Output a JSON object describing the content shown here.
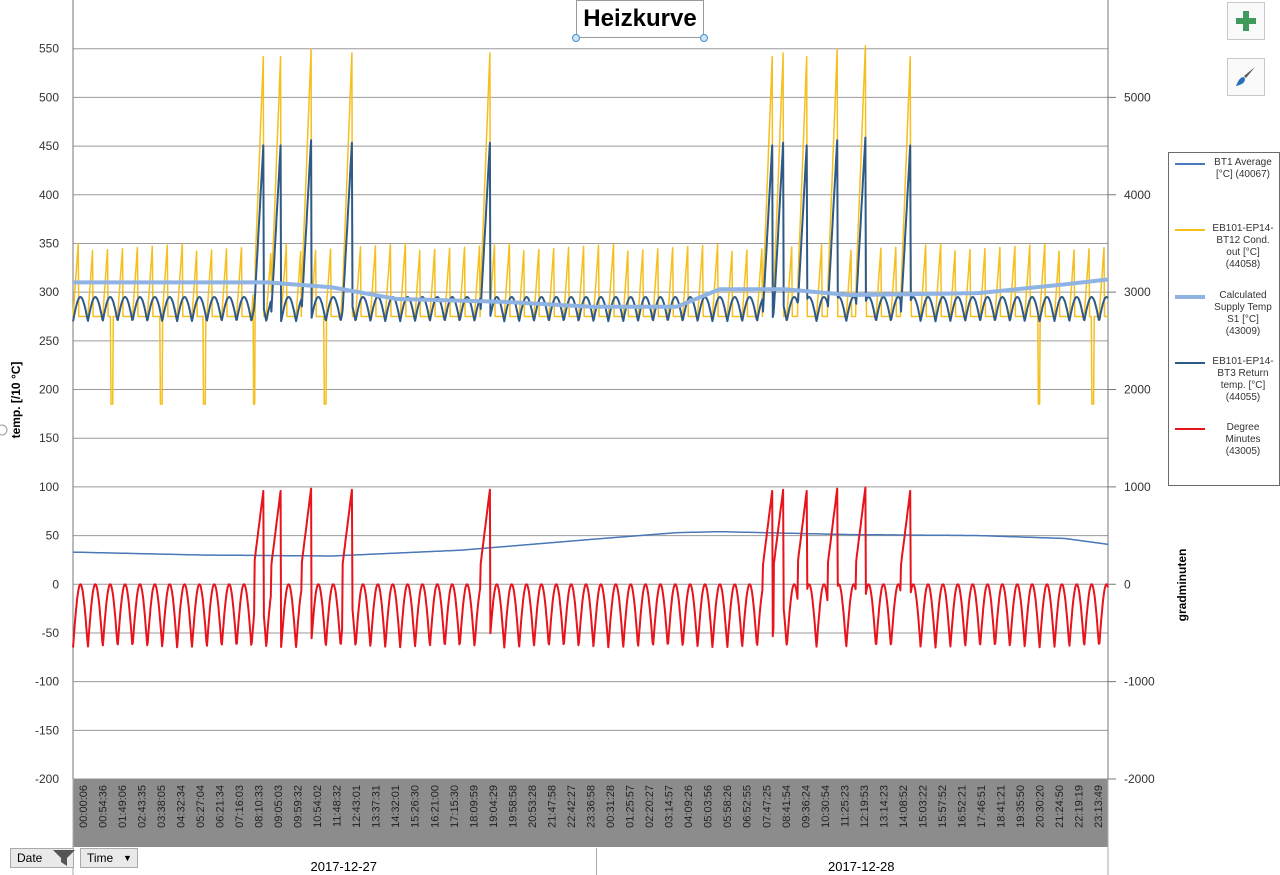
{
  "chart_data": {
    "type": "line",
    "title": "Heizkurve",
    "ylabel": "temp. [/10 °C]",
    "y2label": "gradminuten",
    "ylim": [
      -200,
      600
    ],
    "y2lim": [
      -2000,
      6000
    ],
    "yticks": [
      550,
      500,
      450,
      400,
      350,
      300,
      250,
      200,
      150,
      100,
      50,
      0,
      -50,
      -100,
      -150,
      -200
    ],
    "y2ticks": [
      5000,
      4000,
      3000,
      2000,
      1000,
      0,
      -1000,
      -2000
    ],
    "grid": true,
    "legend_position": "right",
    "x_time_labels": [
      "00:00:06",
      "00:54:36",
      "01:49:06",
      "02:43:35",
      "03:38:05",
      "04:32:34",
      "05:27:04",
      "06:21:34",
      "07:16:03",
      "08:10:33",
      "09:05:03",
      "09:59:32",
      "10:54:02",
      "11:48:32",
      "12:43:01",
      "13:37:31",
      "14:32:01",
      "15:26:30",
      "16:21:00",
      "17:15:30",
      "18:09:59",
      "19:04:29",
      "19:58:58",
      "20:53:28",
      "21:47:58",
      "22:42:27",
      "23:36:58",
      "00:31:28",
      "01:25:57",
      "02:20:27",
      "03:14:57",
      "04:09:26",
      "05:03:56",
      "05:58:26",
      "06:52:55",
      "07:47:25",
      "08:41:54",
      "09:36:24",
      "10:30:54",
      "11:25:23",
      "12:19:53",
      "13:14:23",
      "14:08:52",
      "15:03:22",
      "15:57:52",
      "16:52:21",
      "17:46:51",
      "18:41:21",
      "19:35:50",
      "20:30:20",
      "21:24:50",
      "22:19:19",
      "23:13:49"
    ],
    "x_date_labels": [
      "2017-12-27",
      "2017-12-28"
    ],
    "series": [
      {
        "name": "BT1 Average [°C] (40067)",
        "color": "#4a78b8",
        "axis": "left",
        "x_hours": [
          0,
          6,
          12,
          18,
          24,
          28,
          30,
          36,
          42,
          46,
          48
        ],
        "values": [
          33,
          30,
          29,
          35,
          46,
          53,
          54,
          51,
          50,
          47,
          41
        ]
      },
      {
        "name": "Calculated Supply Temp S1 [°C] (43009)",
        "color": "#8fb4e3",
        "axis": "left",
        "x_hours": [
          0,
          9,
          12,
          15,
          20,
          24,
          28,
          30,
          33,
          36,
          42,
          46,
          48
        ],
        "values": [
          310,
          310,
          305,
          293,
          290,
          285,
          285,
          303,
          303,
          297,
          299,
          308,
          313
        ]
      },
      {
        "name": "EB101-EP14-BT12 Cond. out [°C] (44058)",
        "color": "#f5bf1e",
        "axis": "left",
        "baseline": 275,
        "peak": 350
      },
      {
        "name": "EB101-EP14-BT3 Return temp. [°C] (44055)",
        "color": "#2f5a87",
        "axis": "left",
        "baseline": 270,
        "peak": 295
      },
      {
        "name": "Degree Minutes (43005)",
        "color": "#e8131b",
        "axis": "right",
        "min": -650,
        "max": 1000
      }
    ],
    "defrost_events_hours": [
      8.4,
      9.2,
      10.6,
      12.5,
      18.9,
      32.0,
      32.5,
      33.6,
      35.0,
      36.3,
      38.4
    ],
    "yellow_dips_hours": [
      1.8,
      4.1,
      6.1,
      8.4,
      11.7,
      44.8,
      47.3
    ]
  },
  "legend": {
    "items": [
      {
        "label": "BT1 Average\n[°C] (40067)",
        "color": "#4a78b8"
      },
      {
        "label": "EB101-EP14-\nBT12 Cond.\nout [°C]\n(44058)",
        "color": "#f5bf1e"
      },
      {
        "label": "Calculated\nSupply Temp\nS1 [°C]\n(43009)",
        "color": "#8fb4e3"
      },
      {
        "label": "EB101-EP14-\nBT3 Return\ntemp. [°C]\n(44055)",
        "color": "#2f5a87"
      },
      {
        "label": "Degree\nMinutes\n(43005)",
        "color": "#e8131b"
      }
    ]
  },
  "side_buttons": [
    {
      "icon": "plus-icon",
      "color": "#3f9a5c"
    },
    {
      "icon": "brush-icon",
      "color": "#2a6fb8"
    }
  ],
  "filters": {
    "date_label": "Date",
    "time_label": "Time"
  }
}
